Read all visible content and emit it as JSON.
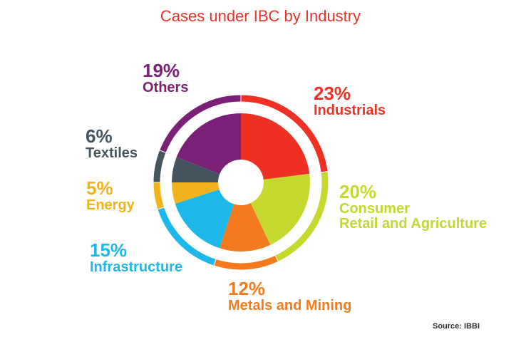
{
  "chart_data": {
    "type": "pie",
    "title": "Cases under IBC by Industry",
    "source": "Source: IBBI",
    "slices": [
      {
        "label": "Industrials",
        "lines": [
          "Industrials"
        ],
        "pct_label": "23%",
        "value": 23,
        "color": "#ee3124"
      },
      {
        "label": "Consumer Retail and Agriculture",
        "lines": [
          "Consumer",
          "Retail and Agriculture"
        ],
        "pct_label": "20%",
        "value": 20,
        "color": "#c5d82e"
      },
      {
        "label": "Metals and Mining",
        "lines": [
          "Metals and Mining"
        ],
        "pct_label": "12%",
        "value": 12,
        "color": "#f47a20"
      },
      {
        "label": "Infrastructure",
        "lines": [
          "Infrastructure"
        ],
        "pct_label": "15%",
        "value": 15,
        "color": "#1eb7e9"
      },
      {
        "label": "Energy",
        "lines": [
          "Energy"
        ],
        "pct_label": "5%",
        "value": 5,
        "color": "#f2b21b"
      },
      {
        "label": "Textiles",
        "lines": [
          "Textiles"
        ],
        "pct_label": "6%",
        "value": 6,
        "color": "#455560"
      },
      {
        "label": "Others",
        "lines": [
          "Others"
        ],
        "pct_label": "19%",
        "value": 19,
        "color": "#7a2077"
      }
    ]
  }
}
